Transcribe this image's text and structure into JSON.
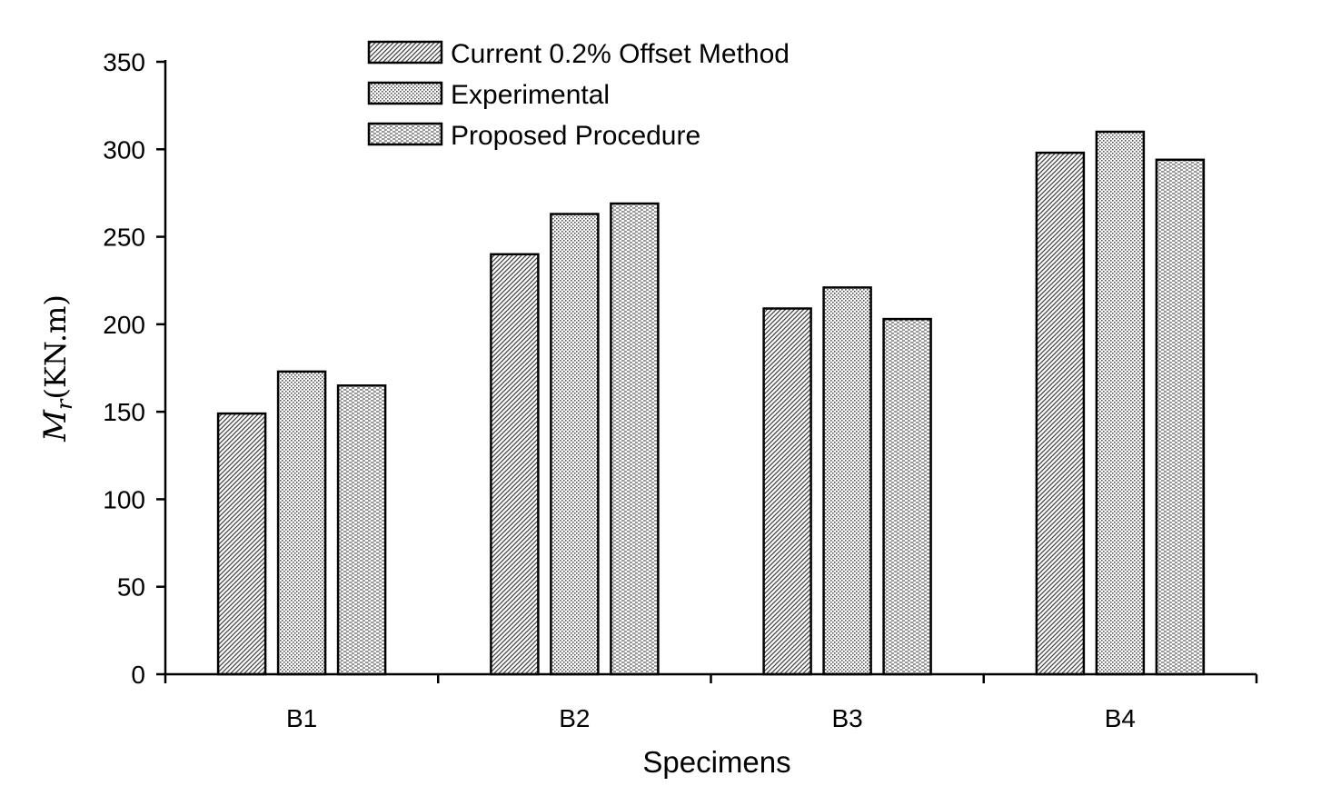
{
  "chart_data": {
    "type": "bar",
    "title": "",
    "xlabel": "Specimens",
    "ylabel_main": "M",
    "ylabel_subscript": "r",
    "ylabel_units": "(KN.m)",
    "ylim": [
      0,
      350
    ],
    "yticks": [
      0,
      50,
      100,
      150,
      200,
      250,
      300,
      350
    ],
    "categories": [
      "B1",
      "B2",
      "B3",
      "B4"
    ],
    "series": [
      {
        "name": "Current 0.2% Offset Method",
        "pattern": "diagonal",
        "values": [
          149,
          240,
          209,
          298
        ]
      },
      {
        "name": "Experimental",
        "pattern": "dots",
        "values": [
          173,
          263,
          221,
          310
        ]
      },
      {
        "name": "Proposed Procedure",
        "pattern": "dashes",
        "values": [
          165,
          269,
          203,
          294
        ]
      }
    ],
    "legend_position": "top-center",
    "grid": false
  }
}
